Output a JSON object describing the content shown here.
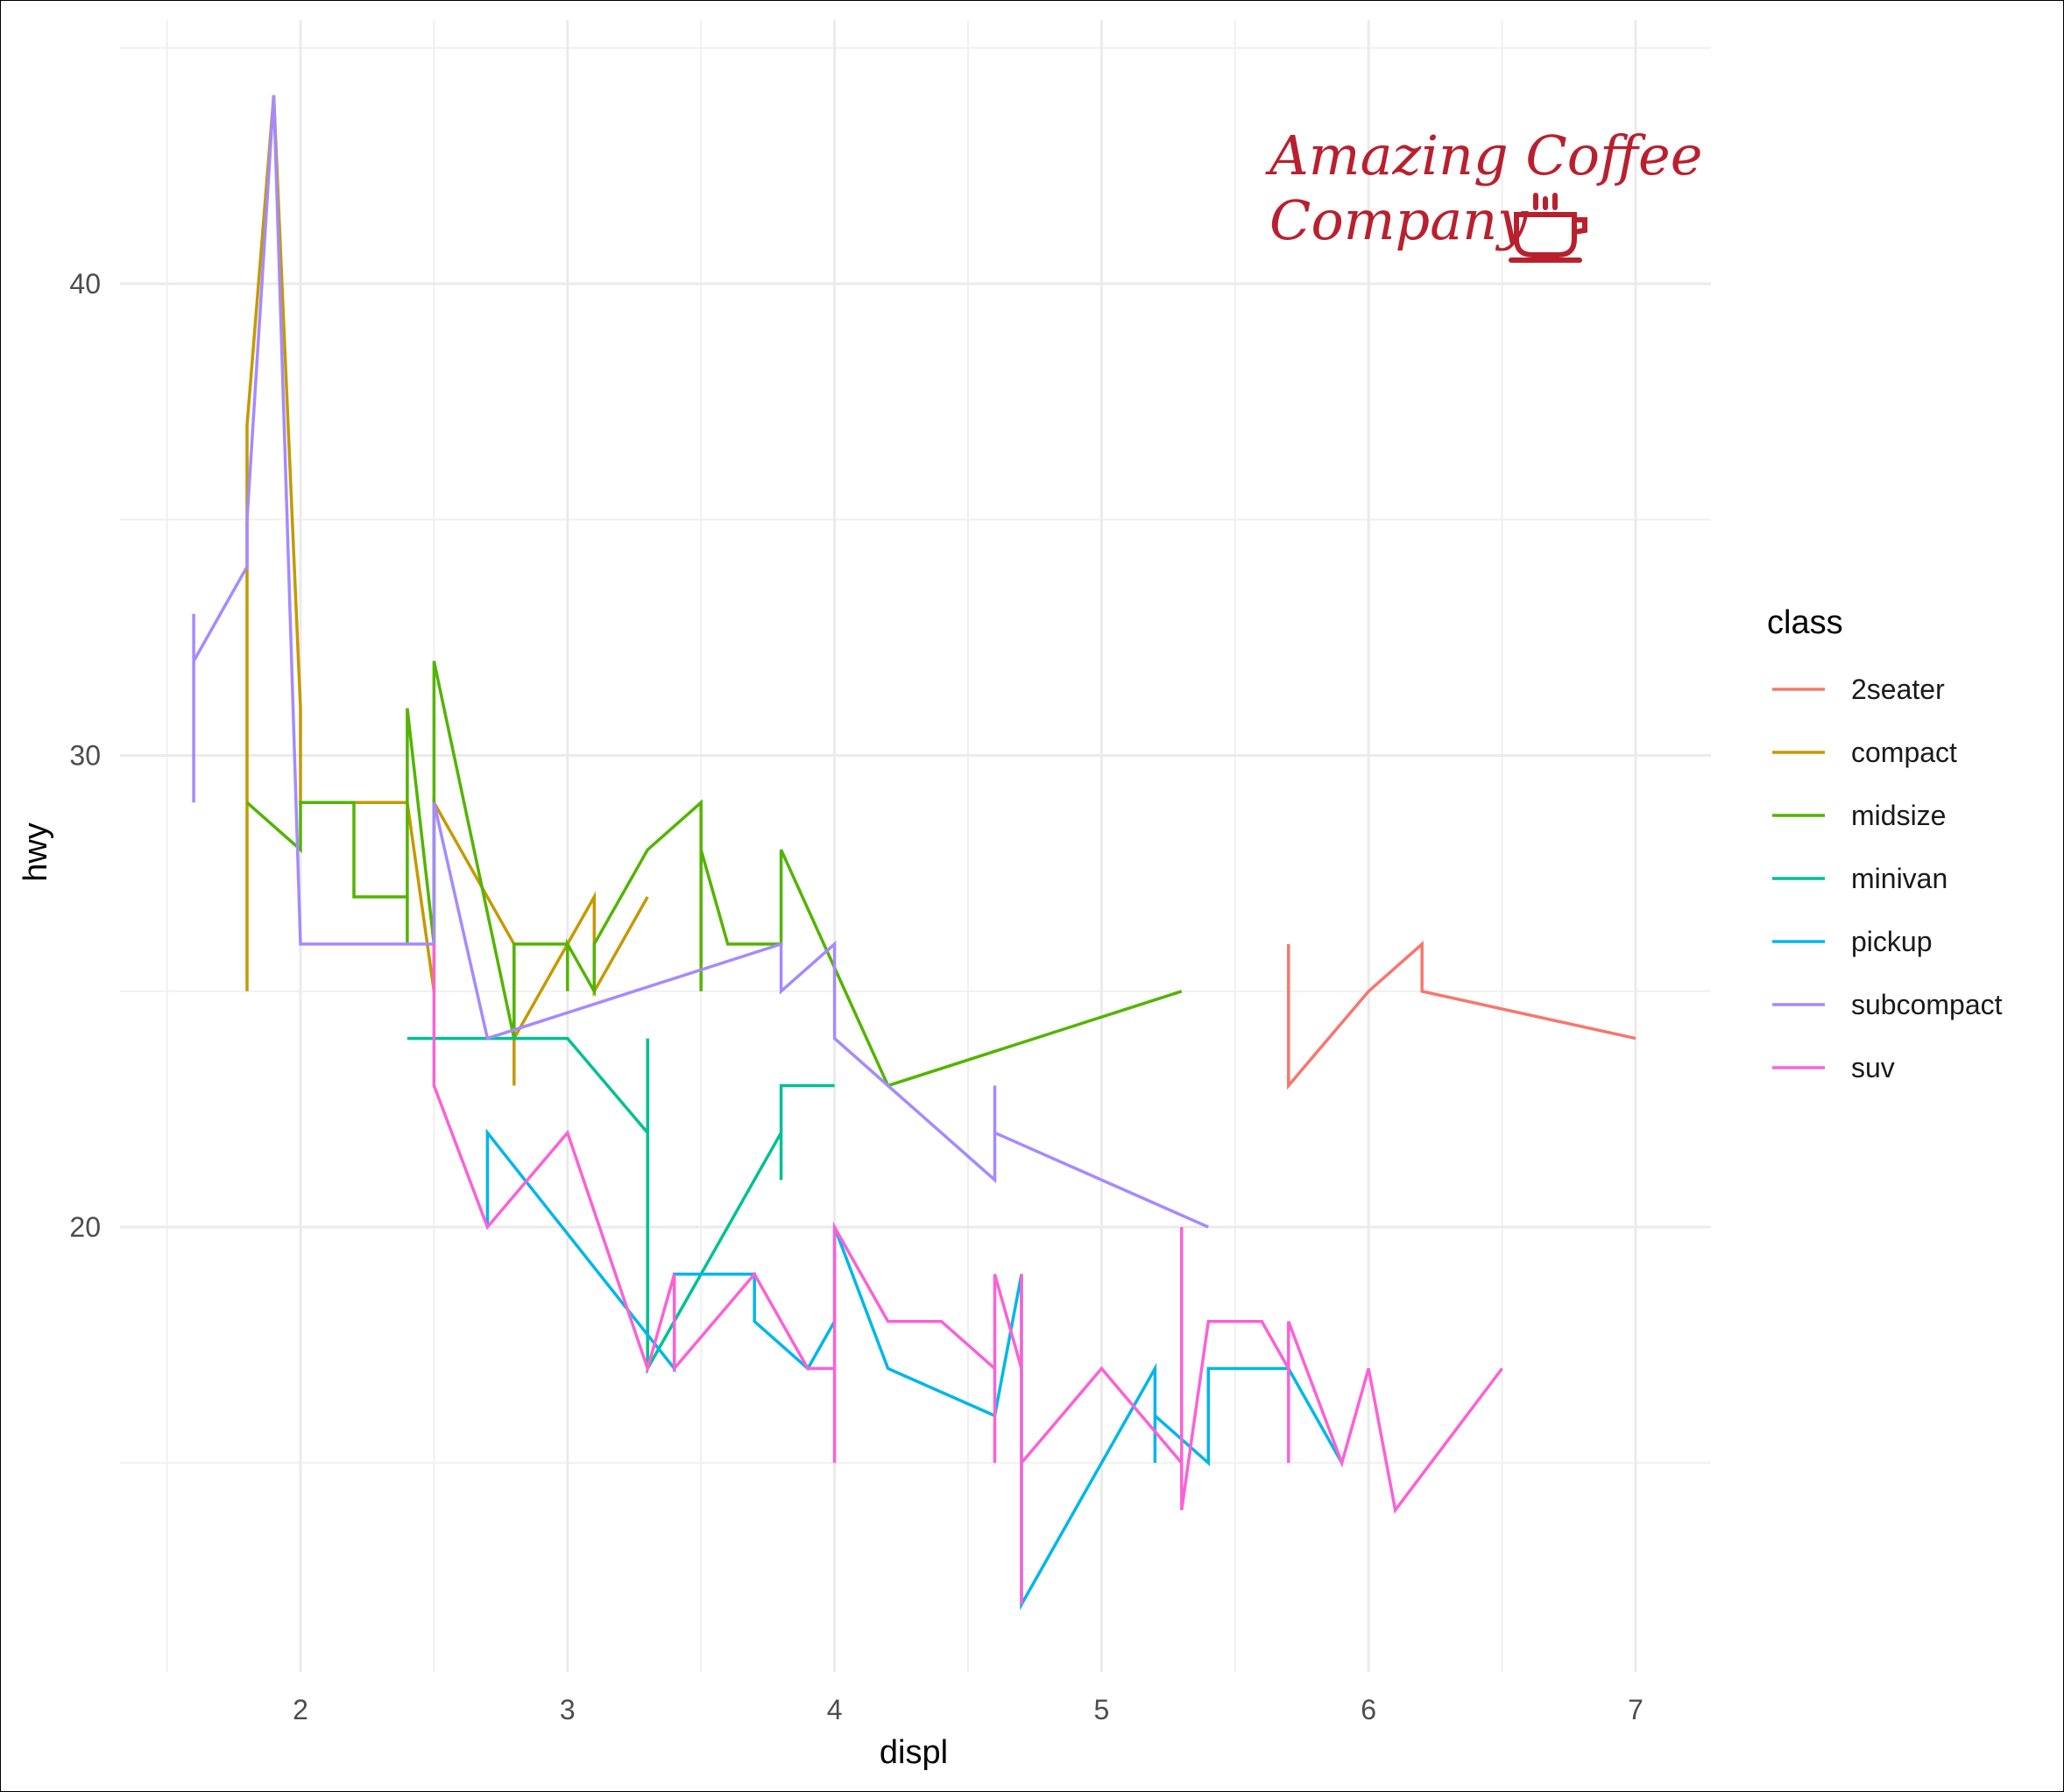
{
  "chart_data": {
    "type": "line",
    "x_label": "displ",
    "y_label": "hwy",
    "x_ticks": [
      2,
      3,
      4,
      5,
      6,
      7
    ],
    "y_ticks": [
      20,
      30,
      40
    ],
    "xlim": [
      1.5,
      7.05
    ],
    "ylim": [
      10.5,
      45.5
    ],
    "grid": true,
    "legend_title": "class",
    "legend_position": "right",
    "series": [
      {
        "name": "2seater",
        "color": "#F8766D",
        "points": [
          [
            5.7,
            26
          ],
          [
            5.7,
            23
          ],
          [
            6.0,
            25
          ],
          [
            6.2,
            26
          ],
          [
            6.2,
            25
          ],
          [
            7.0,
            24
          ]
        ]
      },
      {
        "name": "compact",
        "color": "#C49A00",
        "points": [
          [
            1.8,
            25
          ],
          [
            1.8,
            37
          ],
          [
            1.9,
            44
          ],
          [
            2.0,
            31
          ],
          [
            2.0,
            29
          ],
          [
            2.2,
            29
          ],
          [
            2.4,
            29
          ],
          [
            2.5,
            25
          ],
          [
            2.5,
            29
          ],
          [
            2.8,
            26
          ],
          [
            2.8,
            23
          ],
          [
            2.8,
            24
          ],
          [
            3.0,
            26
          ],
          [
            3.1,
            27
          ],
          [
            3.1,
            25
          ],
          [
            3.3,
            27
          ]
        ]
      },
      {
        "name": "midsize",
        "color": "#53B400",
        "points": [
          [
            1.8,
            29
          ],
          [
            2.0,
            28
          ],
          [
            2.0,
            29
          ],
          [
            2.2,
            29
          ],
          [
            2.2,
            27
          ],
          [
            2.4,
            27
          ],
          [
            2.4,
            26
          ],
          [
            2.4,
            31
          ],
          [
            2.5,
            26
          ],
          [
            2.5,
            32
          ],
          [
            2.8,
            24
          ],
          [
            2.8,
            26
          ],
          [
            3.0,
            26
          ],
          [
            3.0,
            25
          ],
          [
            3.0,
            26
          ],
          [
            3.1,
            25
          ],
          [
            3.1,
            26
          ],
          [
            3.3,
            28
          ],
          [
            3.5,
            29
          ],
          [
            3.5,
            25
          ],
          [
            3.5,
            28
          ],
          [
            3.6,
            26
          ],
          [
            3.8,
            26
          ],
          [
            3.8,
            28
          ],
          [
            4.2,
            23
          ],
          [
            5.3,
            25
          ]
        ]
      },
      {
        "name": "minivan",
        "color": "#00C094",
        "points": [
          [
            2.4,
            24
          ],
          [
            3.0,
            24
          ],
          [
            3.3,
            22
          ],
          [
            3.3,
            24
          ],
          [
            3.3,
            17
          ],
          [
            3.8,
            22
          ],
          [
            3.8,
            21
          ],
          [
            3.8,
            23
          ],
          [
            4.0,
            23
          ]
        ]
      },
      {
        "name": "pickup",
        "color": "#00B6EB",
        "points": [
          [
            2.7,
            20
          ],
          [
            2.7,
            22
          ],
          [
            3.4,
            17
          ],
          [
            3.4,
            19
          ],
          [
            3.7,
            19
          ],
          [
            3.7,
            18
          ],
          [
            3.9,
            17
          ],
          [
            4.0,
            18
          ],
          [
            4.0,
            20
          ],
          [
            4.2,
            17
          ],
          [
            4.6,
            16
          ],
          [
            4.7,
            19
          ],
          [
            4.7,
            12
          ],
          [
            5.2,
            17
          ],
          [
            5.2,
            15
          ],
          [
            5.2,
            16
          ],
          [
            5.4,
            15
          ],
          [
            5.4,
            17
          ],
          [
            5.7,
            17
          ],
          [
            5.9,
            15
          ]
        ]
      },
      {
        "name": "subcompact",
        "color": "#A58AFF",
        "points": [
          [
            1.6,
            29
          ],
          [
            1.6,
            33
          ],
          [
            1.6,
            32
          ],
          [
            1.8,
            34
          ],
          [
            1.8,
            35
          ],
          [
            1.9,
            44
          ],
          [
            2.0,
            26
          ],
          [
            2.5,
            26
          ],
          [
            2.5,
            29
          ],
          [
            2.7,
            24
          ],
          [
            3.8,
            26
          ],
          [
            3.8,
            25
          ],
          [
            4.0,
            26
          ],
          [
            4.0,
            24
          ],
          [
            4.6,
            21
          ],
          [
            4.6,
            23
          ],
          [
            4.6,
            22
          ],
          [
            5.4,
            20
          ]
        ]
      },
      {
        "name": "suv",
        "color": "#FB61D7",
        "points": [
          [
            2.5,
            26
          ],
          [
            2.5,
            23
          ],
          [
            2.7,
            20
          ],
          [
            3.0,
            22
          ],
          [
            3.3,
            17
          ],
          [
            3.4,
            19
          ],
          [
            3.4,
            17
          ],
          [
            3.7,
            19
          ],
          [
            3.9,
            17
          ],
          [
            4.0,
            17
          ],
          [
            4.0,
            15
          ],
          [
            4.0,
            20
          ],
          [
            4.2,
            18
          ],
          [
            4.4,
            18
          ],
          [
            4.6,
            17
          ],
          [
            4.6,
            15
          ],
          [
            4.6,
            19
          ],
          [
            4.7,
            17
          ],
          [
            4.7,
            19
          ],
          [
            4.7,
            12
          ],
          [
            4.7,
            15
          ],
          [
            5.0,
            17
          ],
          [
            5.3,
            15
          ],
          [
            5.3,
            20
          ],
          [
            5.3,
            14
          ],
          [
            5.4,
            18
          ],
          [
            5.6,
            18
          ],
          [
            5.7,
            17
          ],
          [
            5.7,
            15
          ],
          [
            5.7,
            18
          ],
          [
            5.9,
            15
          ],
          [
            6.0,
            17
          ],
          [
            6.1,
            14
          ],
          [
            6.5,
            17
          ]
        ]
      }
    ]
  },
  "logo": {
    "line1": "Amazing Coffee",
    "line2": "Company",
    "icon": "coffee-cup-icon",
    "color": "#b9202e"
  }
}
